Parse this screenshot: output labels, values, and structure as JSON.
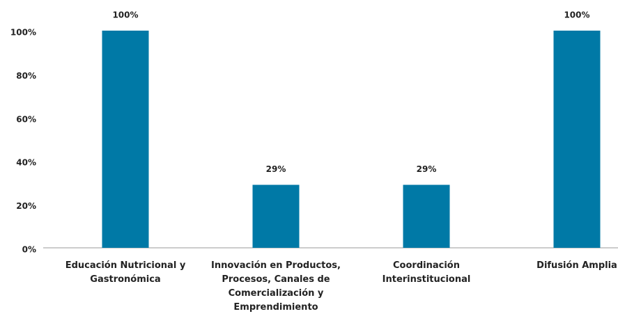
{
  "chart_data": {
    "type": "bar",
    "categories": [
      "Educación Nutricional y Gastronómica",
      "Innovación en Productos, Procesos, Canales de Comercialización y Emprendimiento",
      "Coordinación Interinstitucional",
      "Difusión Amplia"
    ],
    "values": [
      100,
      29,
      29,
      100
    ],
    "value_labels": [
      "100%",
      "29%",
      "29%",
      "100%"
    ],
    "color": "#0079a6",
    "ylim": [
      0,
      100
    ],
    "yticks": [
      {
        "value": 0,
        "label": "0%"
      },
      {
        "value": 20,
        "label": "20%"
      },
      {
        "value": 40,
        "label": "40%"
      },
      {
        "value": 60,
        "label": "60%"
      },
      {
        "value": 80,
        "label": "80%"
      },
      {
        "value": 100,
        "label": "100%"
      }
    ],
    "grid": false
  }
}
